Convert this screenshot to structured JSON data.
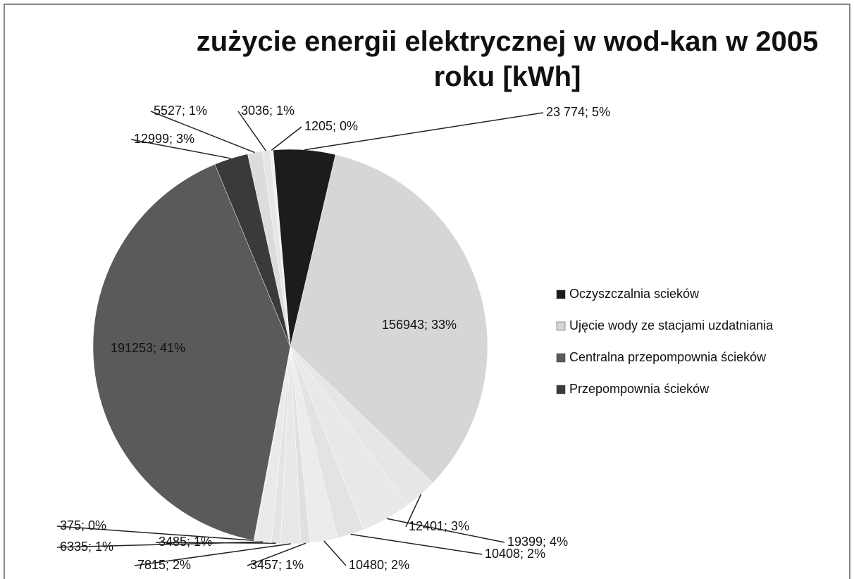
{
  "chart_data": {
    "type": "pie",
    "title": "zużycie energii elektrycznej w wod-kan w 2005 roku [kWh]",
    "legend": {
      "position": "right",
      "items": [
        {
          "name": "Oczyszczalnia scieków",
          "color": "#1c1c1c"
        },
        {
          "name": "Ujęcie wody ze stacjami uzdatniania",
          "color": "#d6d6d6"
        },
        {
          "name": "Centralna przepompownia ścieków",
          "color": "#5a5a5a"
        },
        {
          "name": "Przepompownia ścieków",
          "color": "#3a3a3a"
        }
      ]
    },
    "values": [
      23774,
      156943,
      12401,
      19399,
      10408,
      10480,
      3457,
      7815,
      3485,
      6335,
      375,
      191253,
      12999,
      5527,
      3036,
      1205
    ],
    "value_labels": [
      "23 774; 5%",
      "156943; 33%",
      "12401; 3%",
      "19399; 4%",
      "10408; 2%",
      "10480; 2%",
      "3457; 1%",
      "7815; 2%",
      "3485; 1%",
      "6335; 1%",
      "375; 0%",
      "191253; 41%",
      "12999; 3%",
      "5527; 1%",
      "3036; 1%",
      "1205; 0%"
    ],
    "colors": [
      "#1c1c1c",
      "#d6d6d6",
      "#e6e6e6",
      "#e9e9e9",
      "#e3e3e3",
      "#ececec",
      "#e0e0e0",
      "#e8e8e8",
      "#e4e4e4",
      "#eaeaea",
      "#e2e2e2",
      "#5a5a5a",
      "#3a3a3a",
      "#dcdcdc",
      "#e6e6e6",
      "#eeeeee"
    ]
  }
}
